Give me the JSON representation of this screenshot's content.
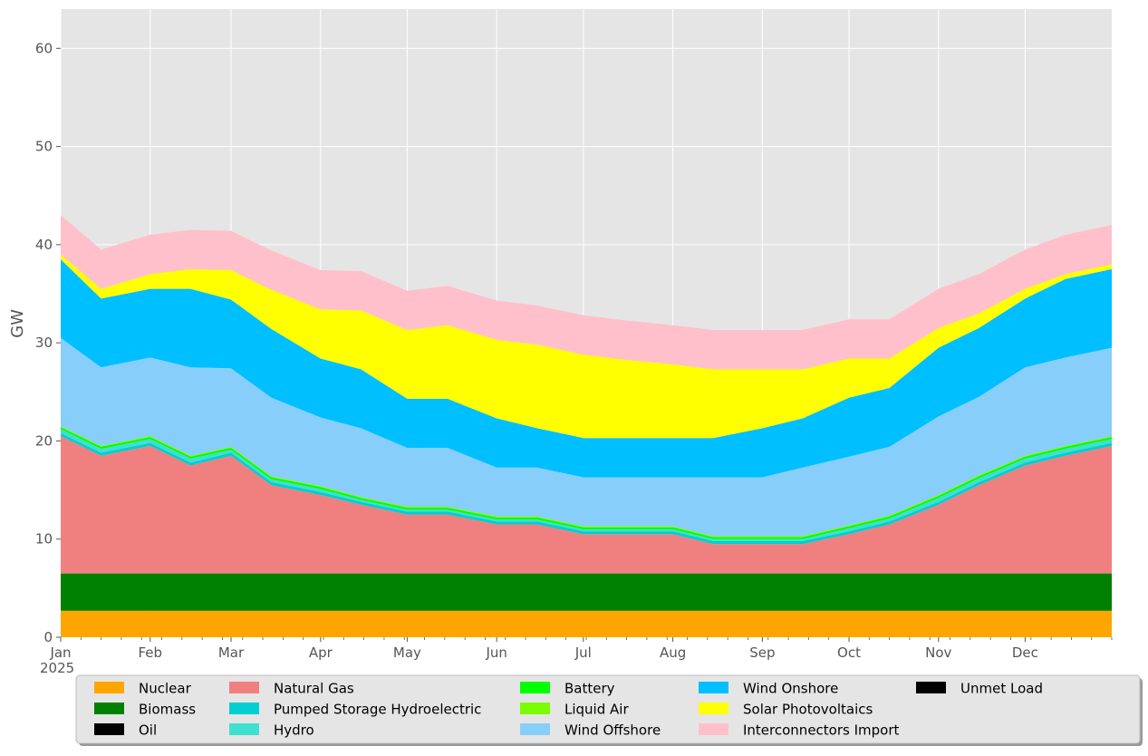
{
  "chart_data": {
    "type": "area",
    "stacked": true,
    "title": "",
    "xlabel": "",
    "ylabel": "GW",
    "ylim": [
      0,
      64
    ],
    "yticks": [
      0,
      10,
      20,
      30,
      40,
      50,
      60
    ],
    "xlim": [
      "2025-01-01",
      "2025-12-31"
    ],
    "xticks": [
      {
        "date": "2025-01-01",
        "label": "Jan"
      },
      {
        "date": "2025-02-01",
        "label": "Feb"
      },
      {
        "date": "2025-03-01",
        "label": "Mar"
      },
      {
        "date": "2025-04-01",
        "label": "Apr"
      },
      {
        "date": "2025-05-01",
        "label": "May"
      },
      {
        "date": "2025-06-01",
        "label": "Jun"
      },
      {
        "date": "2025-07-01",
        "label": "Jul"
      },
      {
        "date": "2025-08-01",
        "label": "Aug"
      },
      {
        "date": "2025-09-01",
        "label": "Sep"
      },
      {
        "date": "2025-10-01",
        "label": "Oct"
      },
      {
        "date": "2025-11-01",
        "label": "Nov"
      },
      {
        "date": "2025-12-01",
        "label": "Dec"
      }
    ],
    "year_label": "2025",
    "grid": true,
    "legend_position": "bottom",
    "x": [
      "2025-01-01",
      "2025-01-15",
      "2025-02-01",
      "2025-02-15",
      "2025-03-01",
      "2025-03-15",
      "2025-04-01",
      "2025-04-15",
      "2025-05-01",
      "2025-05-15",
      "2025-06-01",
      "2025-06-15",
      "2025-07-01",
      "2025-07-15",
      "2025-08-01",
      "2025-08-15",
      "2025-09-01",
      "2025-09-15",
      "2025-10-01",
      "2025-10-15",
      "2025-11-01",
      "2025-11-15",
      "2025-12-01",
      "2025-12-15",
      "2025-12-31"
    ],
    "series": [
      {
        "name": "Nuclear",
        "color": "#ffa500",
        "values": [
          2.7,
          2.7,
          2.7,
          2.7,
          2.7,
          2.7,
          2.7,
          2.7,
          2.7,
          2.7,
          2.7,
          2.7,
          2.7,
          2.7,
          2.7,
          2.7,
          2.7,
          2.7,
          2.7,
          2.7,
          2.7,
          2.7,
          2.7,
          2.7,
          2.7
        ]
      },
      {
        "name": "Biomass",
        "color": "#008000",
        "values": [
          3.8,
          3.8,
          3.8,
          3.8,
          3.8,
          3.8,
          3.8,
          3.8,
          3.8,
          3.8,
          3.8,
          3.8,
          3.8,
          3.8,
          3.8,
          3.8,
          3.8,
          3.8,
          3.8,
          3.8,
          3.8,
          3.8,
          3.8,
          3.8,
          3.8
        ]
      },
      {
        "name": "Oil",
        "color": "#000000",
        "values": [
          0,
          0,
          0,
          0,
          0,
          0,
          0,
          0,
          0,
          0,
          0,
          0,
          0,
          0,
          0,
          0,
          0,
          0,
          0,
          0,
          0,
          0,
          0,
          0,
          0
        ]
      },
      {
        "name": "Natural Gas",
        "color": "#f08080",
        "values": [
          14,
          12,
          13,
          11,
          12,
          9,
          8,
          7,
          6,
          6,
          5,
          5,
          4,
          4,
          4,
          3,
          3,
          3,
          4,
          5,
          7,
          9,
          11,
          12,
          13
        ]
      },
      {
        "name": "Pumped Storage Hydroelectric",
        "color": "#00ced1",
        "values": [
          0.3,
          0.3,
          0.3,
          0.3,
          0.3,
          0.3,
          0.3,
          0.3,
          0.3,
          0.3,
          0.3,
          0.3,
          0.3,
          0.3,
          0.3,
          0.3,
          0.3,
          0.3,
          0.3,
          0.3,
          0.3,
          0.3,
          0.3,
          0.3,
          0.3
        ]
      },
      {
        "name": "Hydro",
        "color": "#40e0d0",
        "values": [
          0.4,
          0.4,
          0.4,
          0.4,
          0.3,
          0.3,
          0.3,
          0.2,
          0.2,
          0.2,
          0.2,
          0.2,
          0.2,
          0.2,
          0.2,
          0.2,
          0.2,
          0.2,
          0.3,
          0.3,
          0.4,
          0.4,
          0.4,
          0.4,
          0.4
        ]
      },
      {
        "name": "Battery",
        "color": "#00ff00",
        "values": [
          0.2,
          0.2,
          0.2,
          0.2,
          0.2,
          0.2,
          0.2,
          0.2,
          0.2,
          0.2,
          0.2,
          0.2,
          0.2,
          0.2,
          0.2,
          0.2,
          0.2,
          0.2,
          0.2,
          0.2,
          0.2,
          0.2,
          0.2,
          0.2,
          0.2
        ]
      },
      {
        "name": "Liquid Air",
        "color": "#7cfc00",
        "values": [
          0.1,
          0.1,
          0.1,
          0.1,
          0.1,
          0.1,
          0.1,
          0.1,
          0.1,
          0.1,
          0.1,
          0.1,
          0.1,
          0.1,
          0.1,
          0.1,
          0.1,
          0.1,
          0.1,
          0.1,
          0.1,
          0.1,
          0.1,
          0.1,
          0.1
        ]
      },
      {
        "name": "Wind Offshore",
        "color": "#87cefa",
        "values": [
          9,
          8,
          8,
          9,
          8,
          8,
          7,
          7,
          6,
          6,
          5,
          5,
          5,
          5,
          5,
          6,
          6,
          7,
          7,
          7,
          8,
          8,
          9,
          9,
          9
        ]
      },
      {
        "name": "Wind Onshore",
        "color": "#00bfff",
        "values": [
          8,
          7,
          7,
          8,
          7,
          7,
          6,
          6,
          5,
          5,
          5,
          4,
          4,
          4,
          4,
          4,
          5,
          5,
          6,
          6,
          7,
          7,
          7,
          8,
          8
        ]
      },
      {
        "name": "Solar Photovoltaics",
        "color": "#ffff00",
        "values": [
          0.5,
          1,
          1.5,
          2,
          3,
          4,
          5,
          6,
          7,
          7.5,
          8,
          8.5,
          8.5,
          8,
          7.5,
          7,
          6,
          5,
          4,
          3,
          2,
          1.5,
          1,
          0.5,
          0.5
        ]
      },
      {
        "name": "Interconnectors Import",
        "color": "#ffc0cb",
        "values": [
          4,
          4,
          4,
          4,
          4,
          4,
          4,
          4,
          4,
          4,
          4,
          4,
          4,
          4,
          4,
          4,
          4,
          4,
          4,
          4,
          4,
          4,
          4,
          4,
          4
        ]
      },
      {
        "name": "Unmet Load",
        "color": "#000000",
        "values": [
          0,
          0,
          0,
          0,
          0,
          0,
          0,
          0,
          0,
          0,
          0,
          0,
          0,
          0,
          0,
          0,
          0,
          0,
          0,
          0,
          0,
          0,
          0,
          0,
          0
        ]
      }
    ]
  }
}
